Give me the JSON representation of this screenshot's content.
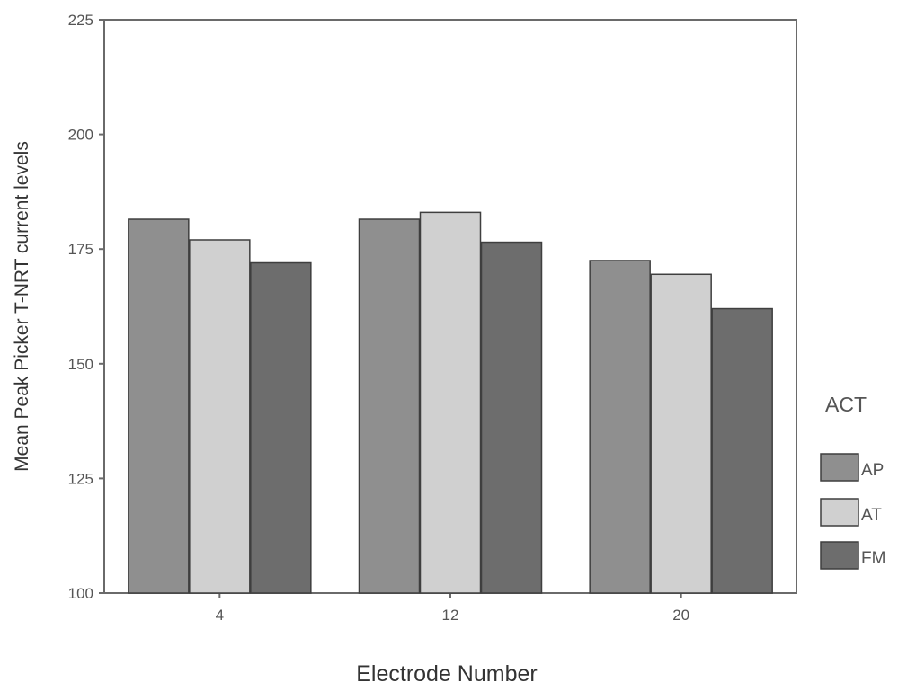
{
  "chart_data": {
    "type": "bar",
    "xlabel": "Electrode Number",
    "ylabel": "Mean Peak Picker T-NRT current levels",
    "categories": [
      "4",
      "12",
      "20"
    ],
    "ylim": [
      100,
      225
    ],
    "yticks": [
      100,
      125,
      150,
      175,
      200,
      225
    ],
    "grid": false,
    "legend": {
      "title": "ACT",
      "position": "right"
    },
    "series": [
      {
        "name": "AP",
        "values": [
          181.5,
          181.5,
          172.5
        ],
        "color": "#8f8f8f"
      },
      {
        "name": "AT",
        "values": [
          177,
          183,
          169.5
        ],
        "color": "#d0d0d0"
      },
      {
        "name": "FM",
        "values": [
          172,
          176.5,
          162
        ],
        "color": "#6d6d6d"
      }
    ]
  }
}
